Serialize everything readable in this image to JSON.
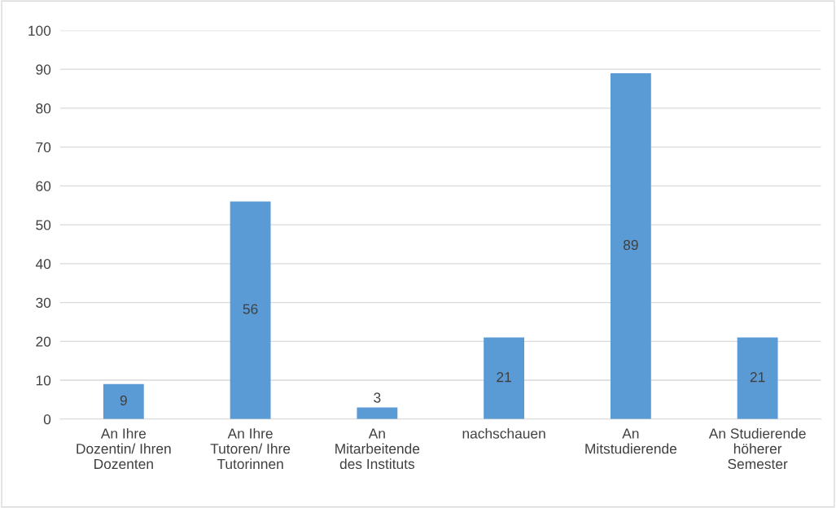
{
  "chart_data": {
    "type": "bar",
    "categories": [
      "An Ihre\nDozentin/ Ihren\nDozenten",
      "An Ihre\nTutoren/ Ihre\nTutorinnen",
      "An\nMitarbeitende\ndes Instituts",
      "nachschauen",
      "An\nMitstudierende",
      "An Studierende\nhöherer\nSemester"
    ],
    "values": [
      9,
      56,
      3,
      21,
      89,
      21
    ],
    "color": "#5b9bd5",
    "ylim": [
      0,
      100
    ],
    "yticks": [
      0,
      10,
      20,
      30,
      40,
      50,
      60,
      70,
      80,
      90,
      100
    ],
    "grid": "y",
    "data_labels": true
  }
}
